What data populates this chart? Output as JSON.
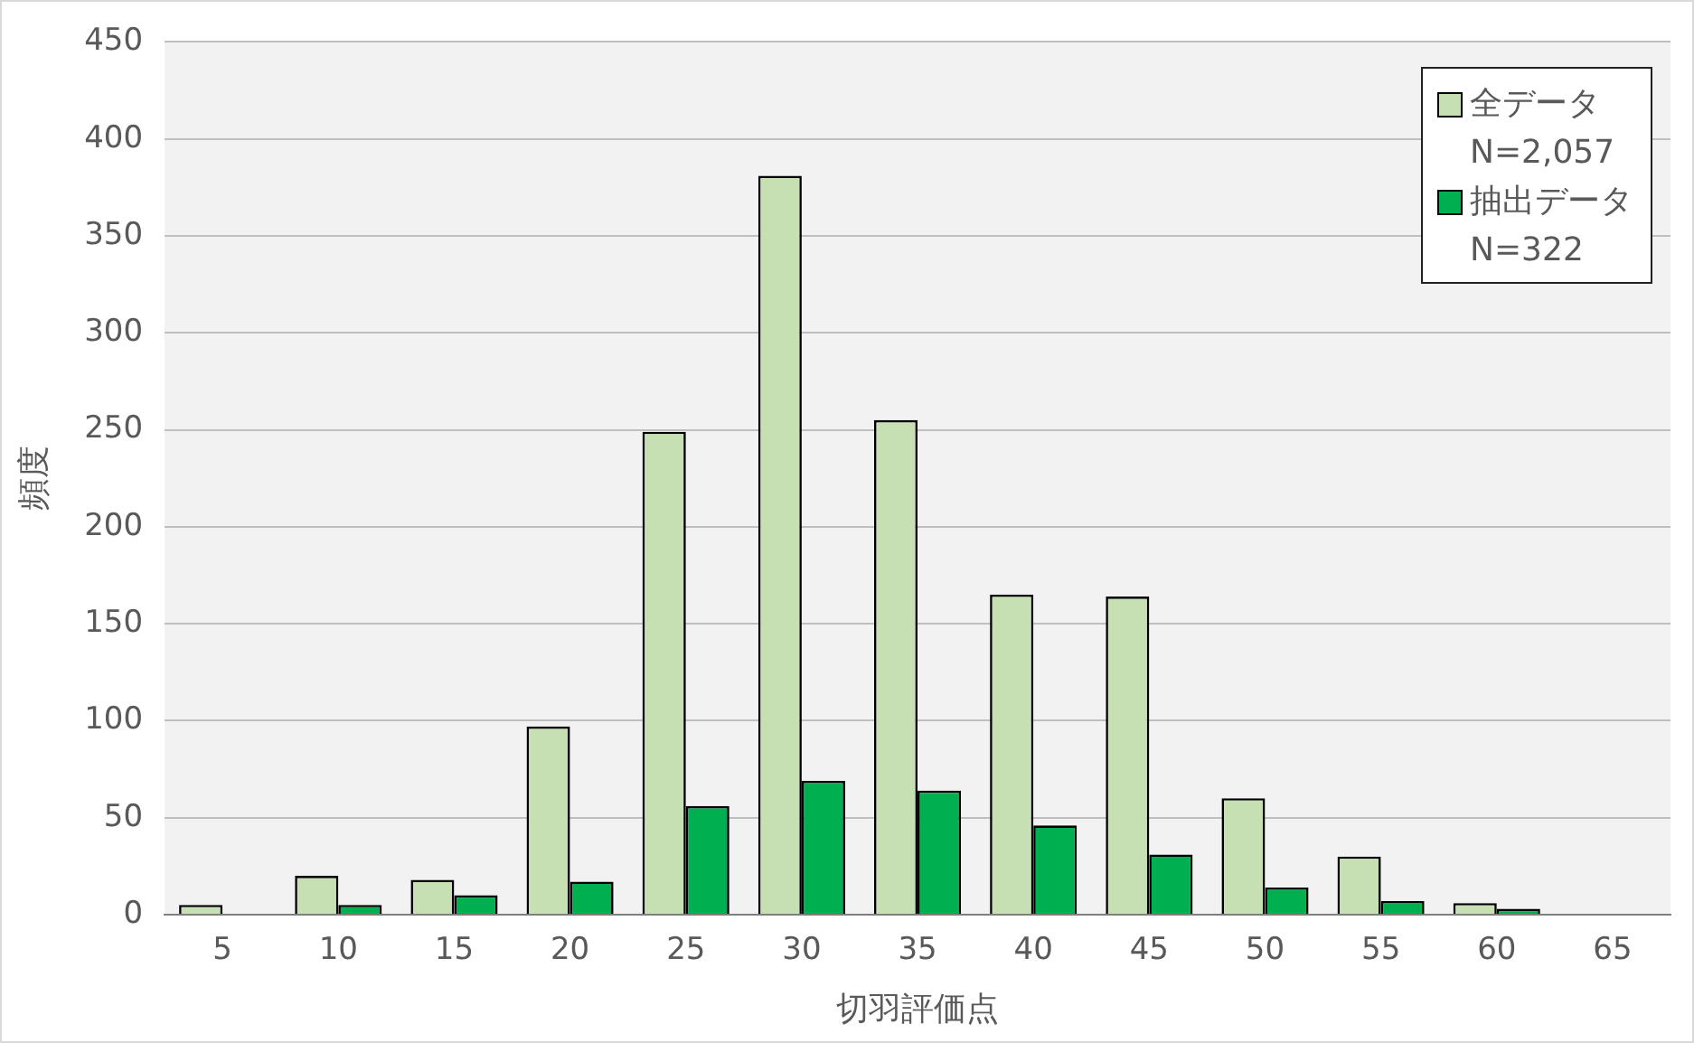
{
  "chart_data": {
    "type": "bar",
    "xlabel": "切羽評価点",
    "ylabel": "頻度",
    "categories": [
      "5",
      "10",
      "15",
      "20",
      "25",
      "30",
      "35",
      "40",
      "45",
      "50",
      "55",
      "60",
      "65"
    ],
    "series": [
      {
        "name": "全データ\nN=2,057",
        "color": "#c6e0b4",
        "values": [
          5,
          20,
          18,
          97,
          249,
          381,
          255,
          165,
          164,
          60,
          30,
          6,
          0
        ]
      },
      {
        "name": "抽出データ\nN=322",
        "color": "#00b050",
        "values": [
          0,
          5,
          10,
          17,
          56,
          69,
          64,
          46,
          31,
          14,
          7,
          3,
          0
        ]
      }
    ],
    "ylim": [
      0,
      450
    ],
    "yticks": [
      0,
      50,
      100,
      150,
      200,
      250,
      300,
      350,
      400,
      450
    ],
    "grid": "y",
    "legend": "top right"
  }
}
